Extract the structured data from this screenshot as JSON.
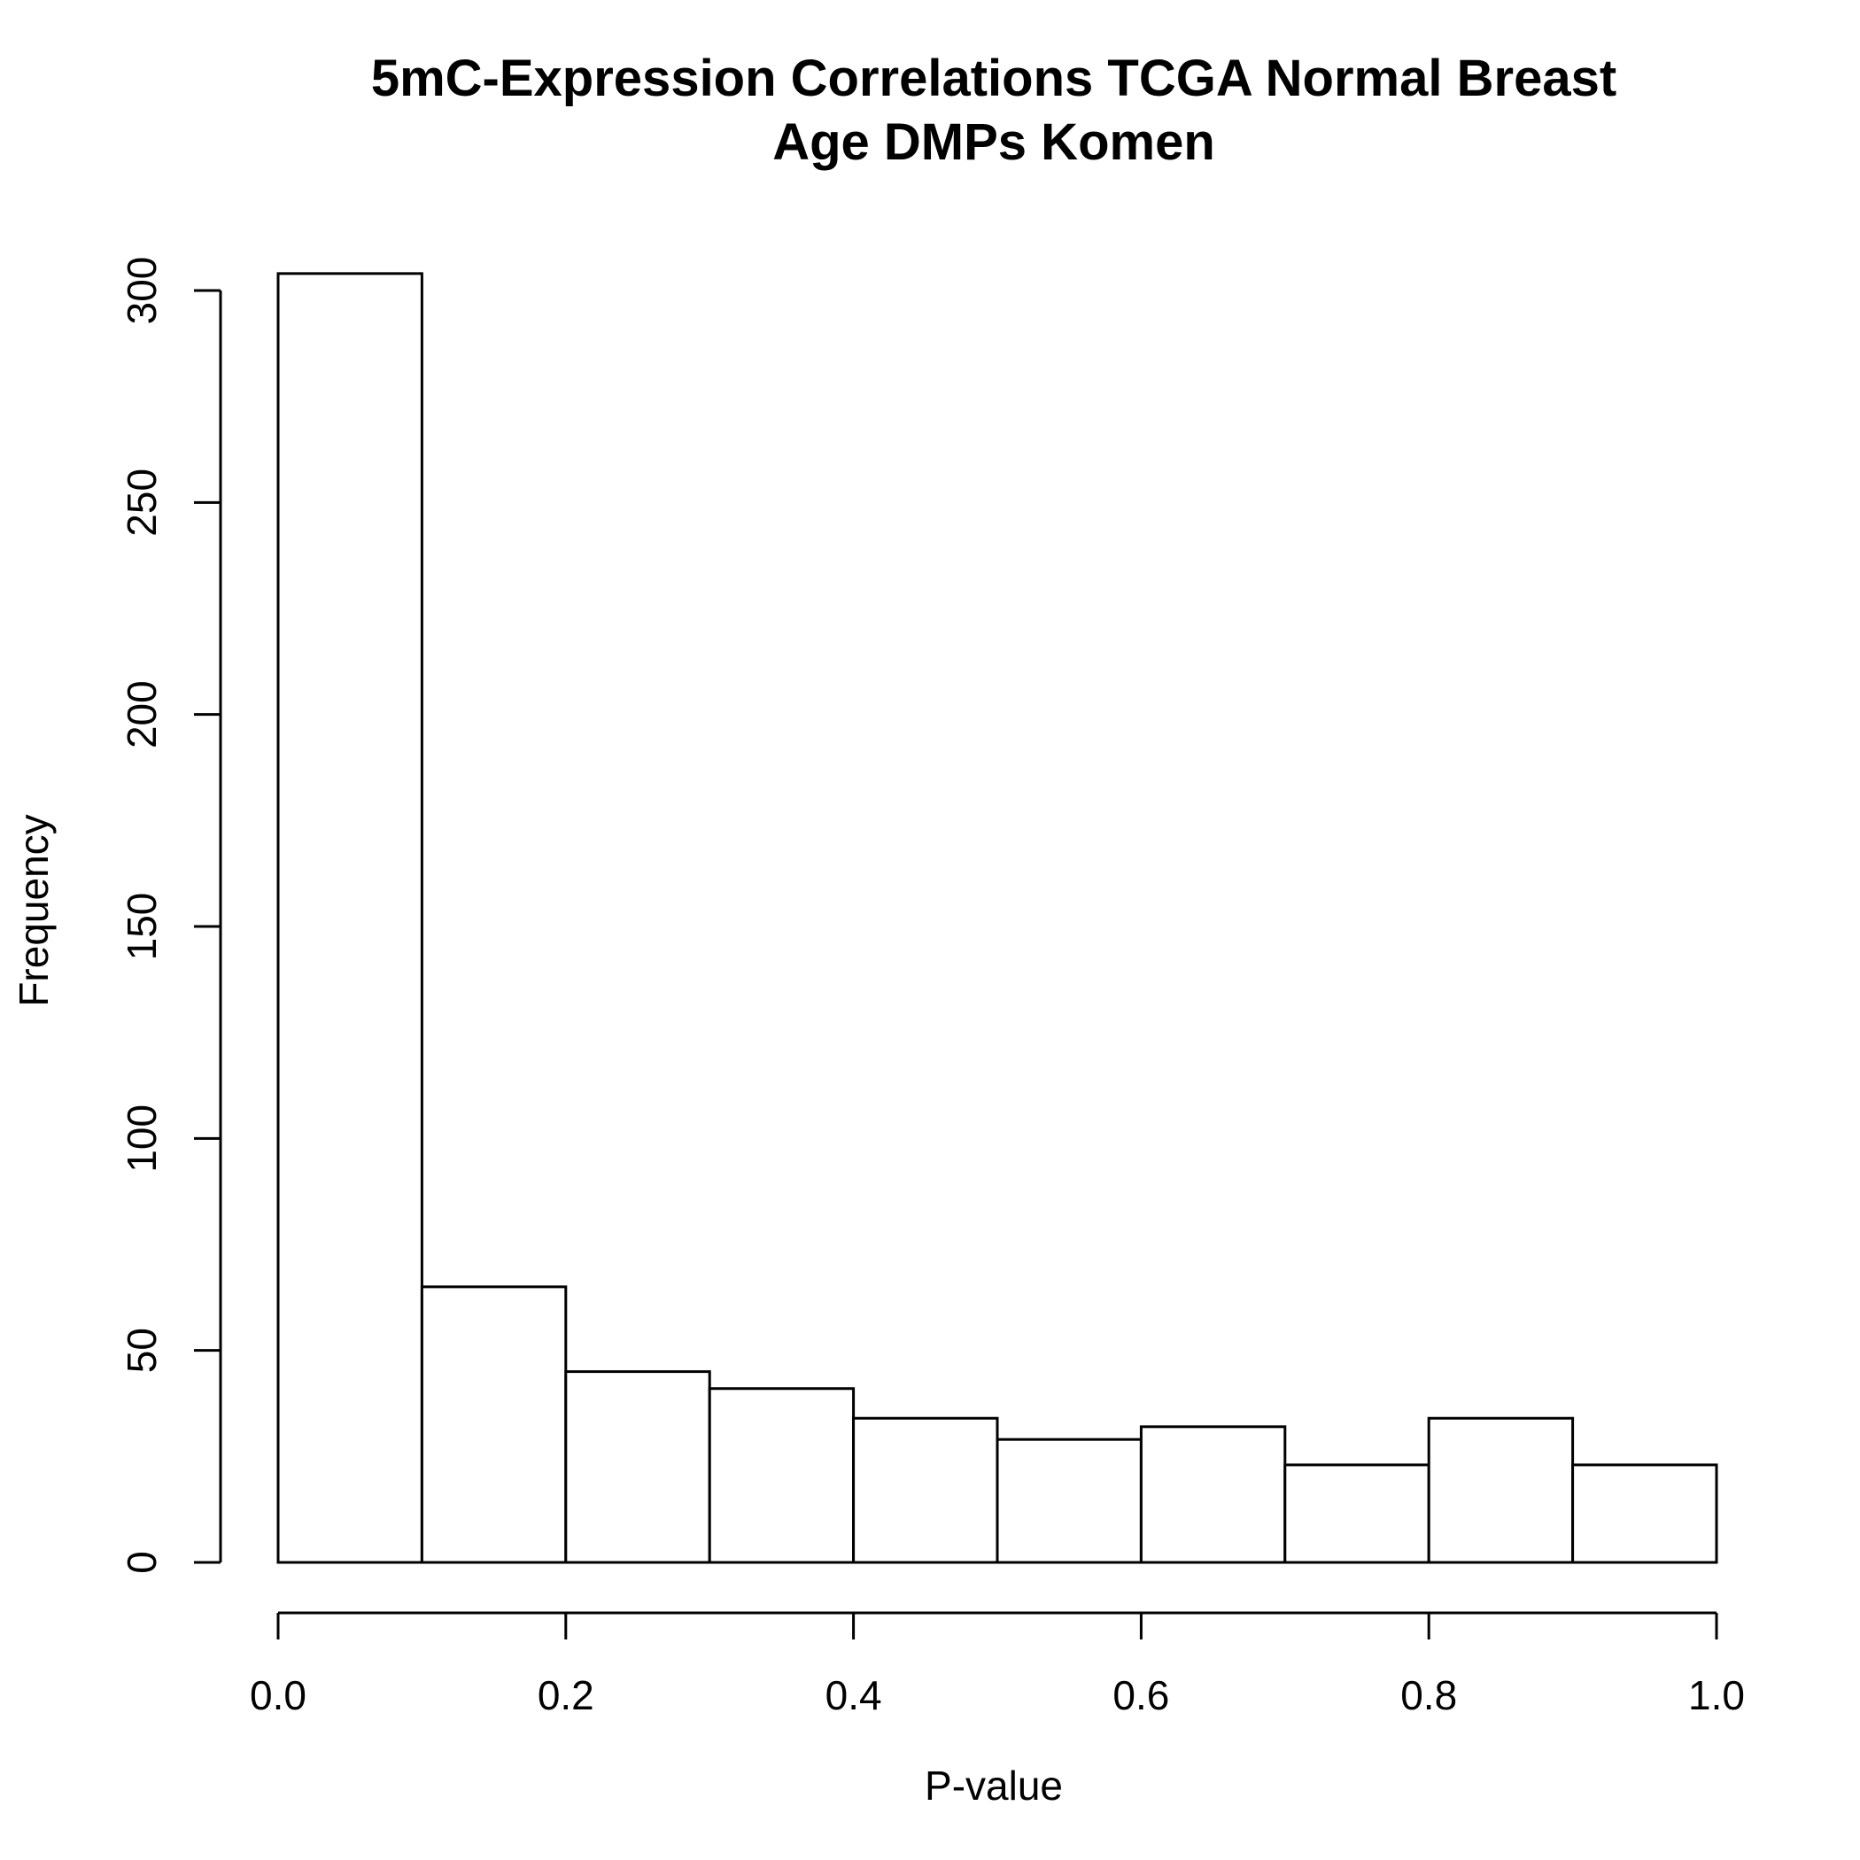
{
  "chart_data": {
    "type": "bar",
    "title": [
      "5mC-Expression Correlations TCGA Normal Breast",
      "Age DMPs Komen"
    ],
    "xlabel": "P-value",
    "ylabel": "Frequency",
    "bins": [
      {
        "x0": 0.0,
        "x1": 0.1,
        "count": 304
      },
      {
        "x0": 0.1,
        "x1": 0.2,
        "count": 65
      },
      {
        "x0": 0.2,
        "x1": 0.3,
        "count": 45
      },
      {
        "x0": 0.3,
        "x1": 0.4,
        "count": 41
      },
      {
        "x0": 0.4,
        "x1": 0.5,
        "count": 34
      },
      {
        "x0": 0.5,
        "x1": 0.6,
        "count": 29
      },
      {
        "x0": 0.6,
        "x1": 0.7,
        "count": 32
      },
      {
        "x0": 0.7,
        "x1": 0.8,
        "count": 23
      },
      {
        "x0": 0.8,
        "x1": 0.9,
        "count": 34
      },
      {
        "x0": 0.9,
        "x1": 1.0,
        "count": 23
      }
    ],
    "xlim": [
      0.0,
      1.0
    ],
    "ylim": [
      0,
      300
    ],
    "xticks": [
      "0.0",
      "0.2",
      "0.4",
      "0.6",
      "0.8",
      "1.0"
    ],
    "yticks": [
      "0",
      "50",
      "100",
      "150",
      "200",
      "250",
      "300"
    ],
    "grid": false,
    "legend": "none",
    "colors": {
      "bar_fill": "#ffffff",
      "bar_stroke": "#000000"
    }
  }
}
